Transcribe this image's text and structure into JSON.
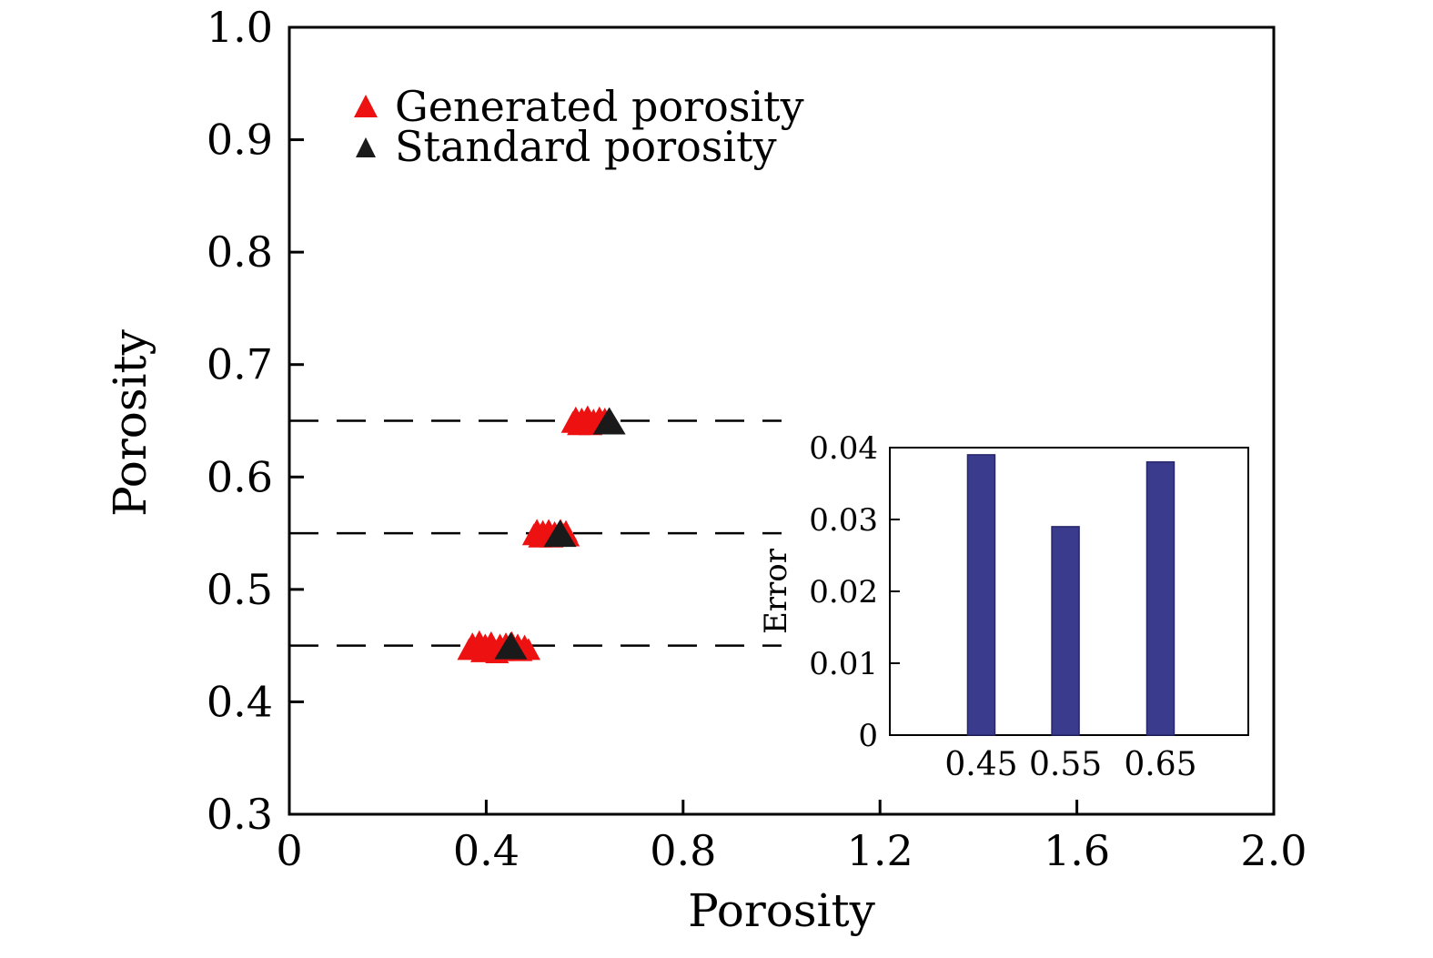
{
  "figure": {
    "background": "#ffffff",
    "axis_color": "#000000"
  },
  "chart_data": {
    "type": "scatter",
    "title": "",
    "xlabel": "Porosity",
    "ylabel": "Porosity",
    "xlim": [
      0,
      2.0
    ],
    "ylim": [
      0.3,
      1.0
    ],
    "xticks": {
      "values": [
        0,
        0.4,
        0.8,
        1.2,
        1.6,
        2.0
      ],
      "labels": [
        "0",
        "0.4",
        "0.8",
        "1.2",
        "1.6",
        "2.0"
      ]
    },
    "yticks": {
      "values": [
        0.3,
        0.4,
        0.5,
        0.6,
        0.7,
        0.8,
        0.9,
        1.0
      ],
      "labels": [
        "0.3",
        "0.4",
        "0.5",
        "0.6",
        "0.7",
        "0.8",
        "0.9",
        "1.0"
      ]
    },
    "legend": {
      "position": "top-left",
      "items": [
        {
          "label": "Generated porosity",
          "marker": "triangle-up",
          "color": "#ee1111"
        },
        {
          "label": "Standard porosity",
          "marker": "triangle-up",
          "color": "#1a1a1a"
        }
      ]
    },
    "reference_lines": {
      "style": "dashed",
      "color": "#000000",
      "y_values": [
        0.45,
        0.55,
        0.65
      ],
      "x_range": [
        0,
        1.0
      ]
    },
    "series": [
      {
        "name": "Generated porosity",
        "marker": "triangle-up",
        "color": "#ee1111",
        "points": [
          [
            0.365,
            0.447
          ],
          [
            0.372,
            0.452
          ],
          [
            0.38,
            0.448
          ],
          [
            0.386,
            0.454
          ],
          [
            0.392,
            0.445
          ],
          [
            0.398,
            0.451
          ],
          [
            0.404,
            0.447
          ],
          [
            0.41,
            0.453
          ],
          [
            0.416,
            0.448
          ],
          [
            0.422,
            0.444
          ],
          [
            0.428,
            0.451
          ],
          [
            0.434,
            0.446
          ],
          [
            0.44,
            0.452
          ],
          [
            0.446,
            0.448
          ],
          [
            0.452,
            0.453
          ],
          [
            0.458,
            0.447
          ],
          [
            0.464,
            0.451
          ],
          [
            0.47,
            0.446
          ],
          [
            0.478,
            0.45
          ],
          [
            0.486,
            0.447
          ],
          [
            0.497,
            0.549
          ],
          [
            0.503,
            0.553
          ],
          [
            0.509,
            0.547
          ],
          [
            0.515,
            0.552
          ],
          [
            0.521,
            0.548
          ],
          [
            0.527,
            0.553
          ],
          [
            0.533,
            0.547
          ],
          [
            0.539,
            0.551
          ],
          [
            0.545,
            0.548
          ],
          [
            0.551,
            0.553
          ],
          [
            0.557,
            0.549
          ],
          [
            0.562,
            0.552
          ],
          [
            0.566,
            0.548
          ],
          [
            0.576,
            0.649
          ],
          [
            0.582,
            0.653
          ],
          [
            0.588,
            0.647
          ],
          [
            0.594,
            0.652
          ],
          [
            0.6,
            0.648
          ],
          [
            0.606,
            0.654
          ],
          [
            0.612,
            0.647
          ],
          [
            0.618,
            0.651
          ],
          [
            0.624,
            0.648
          ],
          [
            0.63,
            0.653
          ],
          [
            0.636,
            0.649
          ],
          [
            0.641,
            0.652
          ],
          [
            0.645,
            0.648
          ]
        ]
      },
      {
        "name": "Standard porosity",
        "marker": "triangle-up",
        "color": "#1a1a1a",
        "points": [
          [
            0.45,
            0.45
          ],
          [
            0.55,
            0.55
          ],
          [
            0.65,
            0.65
          ]
        ]
      }
    ],
    "inset": {
      "type": "bar",
      "ylabel": "Error",
      "categories": [
        "0.45",
        "0.55",
        "0.65"
      ],
      "values": [
        0.039,
        0.029,
        0.038
      ],
      "ylim": [
        0,
        0.04
      ],
      "yticks": {
        "values": [
          0,
          0.01,
          0.02,
          0.03,
          0.04
        ],
        "labels": [
          "0",
          "0.01",
          "0.02",
          "0.03",
          "0.04"
        ]
      },
      "bar_color": "#3b3b8e",
      "bar_edge_color": "#26266b"
    }
  }
}
